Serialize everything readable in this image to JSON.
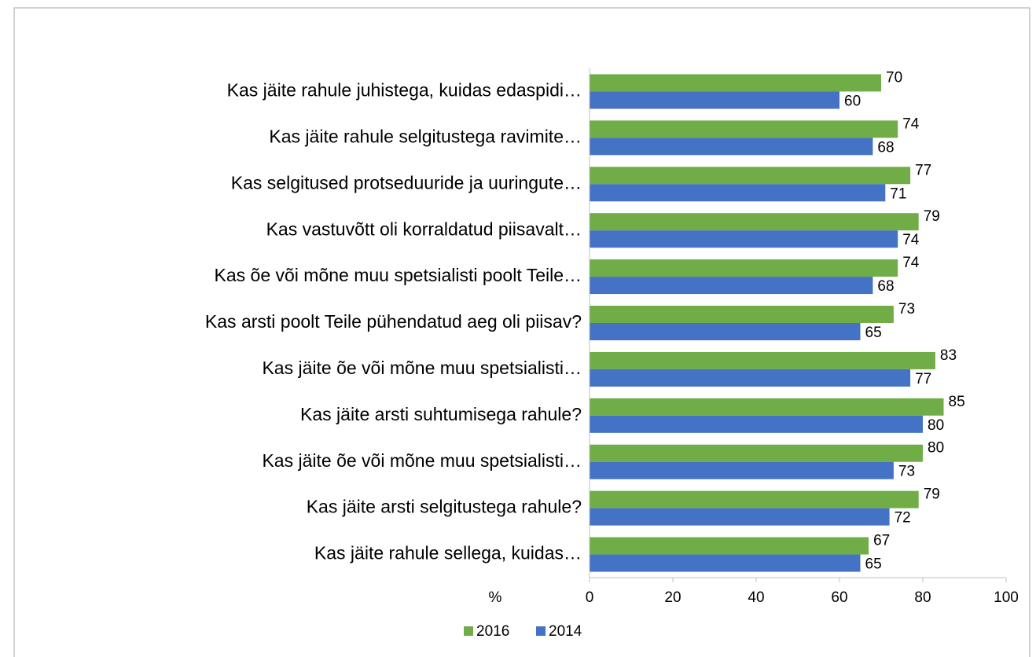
{
  "chart_data": {
    "type": "bar",
    "orientation": "horizontal",
    "x_label": "%",
    "categories": [
      "Kas jäite rahule juhistega, kuidas edaspidi…",
      "Kas jäite rahule selgitustega ravimite…",
      "Kas selgitused protseduuride ja uuringute…",
      "Kas vastuvõtt oli korraldatud piisavalt…",
      "Kas õe või mõne muu spetsialisti poolt Teile…",
      "Kas arsti poolt Teile pühendatud aeg oli piisav?",
      "Kas jäite õe või mõne muu spetsialisti…",
      "Kas jäite arsti suhtumisega rahule?",
      "Kas jäite õe või mõne muu spetsialisti…",
      "Kas jäite arsti selgitustega rahule?",
      "Kas jäite rahule sellega, kuidas…"
    ],
    "series": [
      {
        "name": "2016",
        "color": "#70ad47",
        "values": [
          70,
          74,
          77,
          79,
          74,
          73,
          83,
          85,
          80,
          79,
          67
        ]
      },
      {
        "name": "2014",
        "color": "#4472c4",
        "values": [
          60,
          68,
          71,
          74,
          68,
          65,
          77,
          80,
          73,
          72,
          65
        ]
      }
    ],
    "xlim": [
      0,
      100
    ],
    "xticks": [
      0,
      20,
      40,
      60,
      80,
      100
    ],
    "legend": "bottom"
  }
}
